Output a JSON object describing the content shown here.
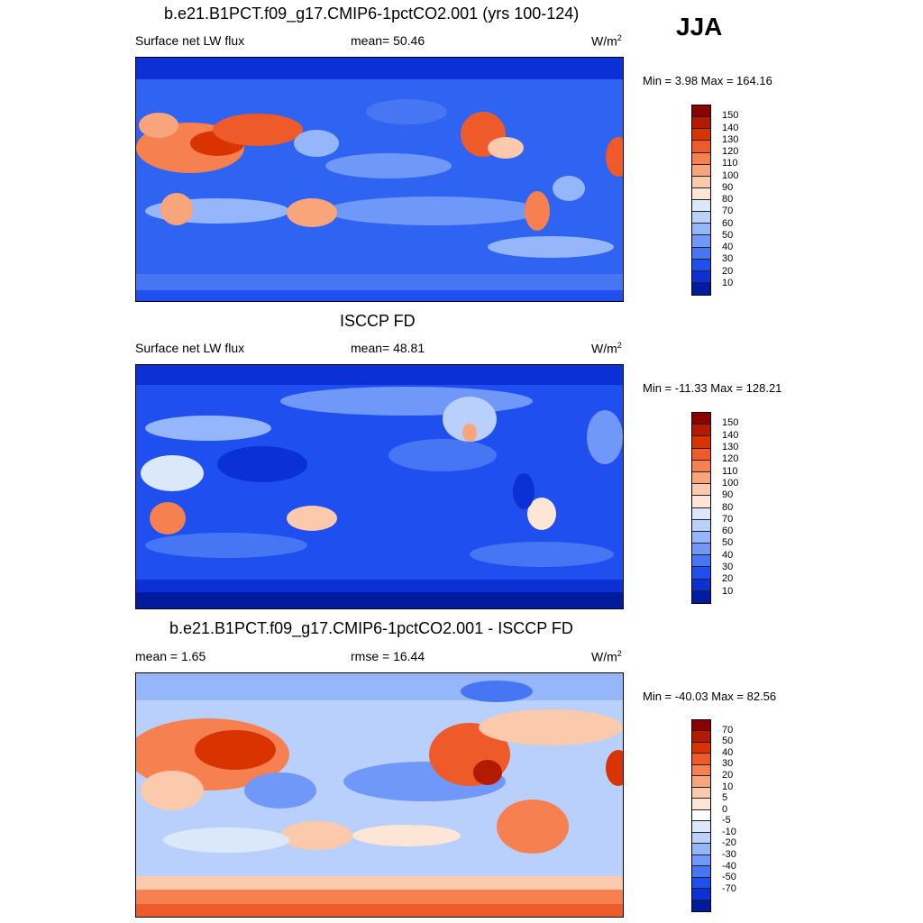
{
  "season": "JJA",
  "panels": [
    {
      "title": "b.e21.B1PCT.f09_g17.CMIP6-1pctCO2.001 (yrs 100-124)",
      "left_label": "Surface net LW flux",
      "center_label": "mean=  50.46",
      "units": "W/m",
      "units_sup": "2",
      "minmax": "Min =   3.98 Max = 164.16",
      "colorbar": {
        "colors": [
          "#8b0000",
          "#b31a00",
          "#d93300",
          "#ee5a2a",
          "#f6804f",
          "#f9a57c",
          "#fbc9ab",
          "#fde6d5",
          "#dbe8fc",
          "#b8d0fb",
          "#95b6fa",
          "#6f98f8",
          "#4776f5",
          "#1f50ef",
          "#0a30d6",
          "#001b9e"
        ],
        "labels": [
          "150",
          "140",
          "130",
          "120",
          "110",
          "100",
          "90",
          "80",
          "70",
          "60",
          "50",
          "40",
          "30",
          "20",
          "10"
        ]
      }
    },
    {
      "title": "ISCCP FD",
      "left_label": "Surface net LW flux",
      "center_label": "mean=  48.81",
      "units": "W/m",
      "units_sup": "2",
      "minmax": "Min = -11.33 Max = 128.21",
      "colorbar": {
        "colors": [
          "#8b0000",
          "#b31a00",
          "#d93300",
          "#ee5a2a",
          "#f6804f",
          "#f9a57c",
          "#fbc9ab",
          "#fde6d5",
          "#dbe8fc",
          "#b8d0fb",
          "#95b6fa",
          "#6f98f8",
          "#4776f5",
          "#1f50ef",
          "#0a30d6",
          "#001b9e"
        ],
        "labels": [
          "150",
          "140",
          "130",
          "120",
          "110",
          "100",
          "90",
          "80",
          "70",
          "60",
          "50",
          "40",
          "30",
          "20",
          "10"
        ]
      }
    },
    {
      "title": "b.e21.B1PCT.f09_g17.CMIP6-1pctCO2.001 - ISCCP FD",
      "left_label": "mean =   1.65",
      "center_label": "rmse =  16.44",
      "units": "W/m",
      "units_sup": "2",
      "minmax": "Min = -40.03 Max =  82.56",
      "colorbar": {
        "colors": [
          "#8b0000",
          "#b31a00",
          "#d93300",
          "#ee5a2a",
          "#f6804f",
          "#f9a57c",
          "#fbc9ab",
          "#fde6d5",
          "#ffffff",
          "#dbe8fc",
          "#b8d0fb",
          "#95b6fa",
          "#6f98f8",
          "#4776f5",
          "#1f50ef",
          "#0a30d6",
          "#001b9e"
        ],
        "labels": [
          "70",
          "50",
          "40",
          "30",
          "20",
          "10",
          "5",
          "0",
          "-5",
          "-10",
          "-20",
          "-30",
          "-40",
          "-50",
          "-70"
        ]
      }
    }
  ]
}
